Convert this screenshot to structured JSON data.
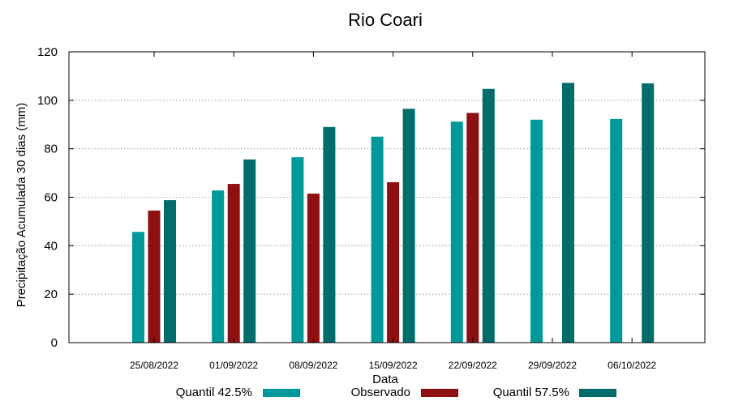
{
  "chart_data": {
    "type": "bar",
    "title": "Rio Coari",
    "xlabel": "Data",
    "ylabel": "Precipitação Acumulada 30 dias (mm)",
    "ylim": [
      0,
      120
    ],
    "yticks": [
      0,
      20,
      40,
      60,
      80,
      100,
      120
    ],
    "grid": true,
    "legend_position": "bottom",
    "categories": [
      "25/08/2022",
      "01/09/2022",
      "08/09/2022",
      "15/09/2022",
      "22/09/2022",
      "29/09/2022",
      "06/10/2022"
    ],
    "series": [
      {
        "name": "Quantil 42.5%",
        "color": "#009999",
        "values": [
          45.7,
          62.8,
          76.5,
          85.0,
          91.2,
          92.0,
          92.3
        ]
      },
      {
        "name": "Observado",
        "color": "#8f1010",
        "values": [
          54.5,
          65.5,
          61.5,
          66.2,
          94.8,
          null,
          null
        ]
      },
      {
        "name": "Quantil 57.5%",
        "color": "#006c6c",
        "values": [
          58.8,
          75.6,
          89.0,
          96.5,
          104.7,
          107.2,
          107.0
        ]
      }
    ]
  }
}
